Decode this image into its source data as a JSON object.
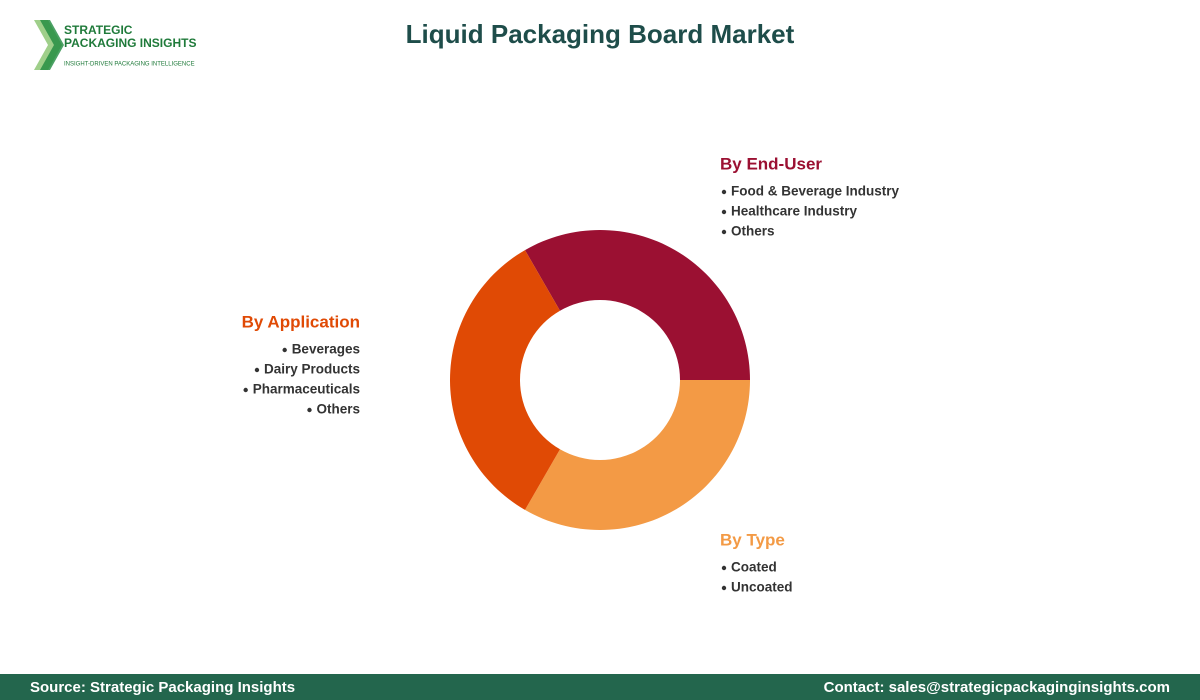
{
  "header": {
    "logo": {
      "line1": "STRATEGIC",
      "line2": "PACKAGING INSIGHTS",
      "tagline": "INSIGHT-DRIVEN PACKAGING INTELLIGENCE"
    },
    "title": "Liquid Packaging Board Market"
  },
  "segments": [
    {
      "title": "By End-User",
      "color": "#9b1032",
      "items": [
        "Food & Beverage Industry",
        "Healthcare Industry",
        "Others"
      ]
    },
    {
      "title": "By Type",
      "color": "#f39a45",
      "items": [
        "Coated",
        "Uncoated"
      ]
    },
    {
      "title": "By Application",
      "color": "#e04a05",
      "items": [
        "Beverages",
        "Dairy Products",
        "Pharmaceuticals",
        "Others"
      ]
    }
  ],
  "footer": {
    "source": "Source: Strategic Packaging Insights",
    "contact": "Contact: sales@strategicpackaginginsights.com"
  }
}
